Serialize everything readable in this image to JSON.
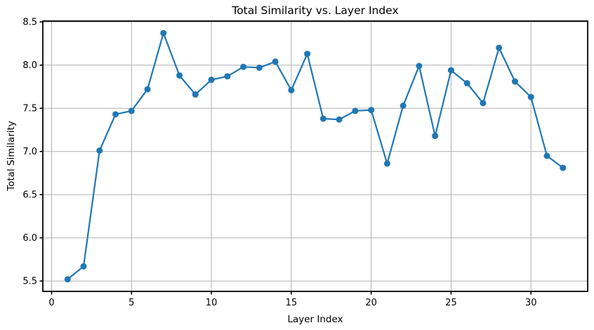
{
  "chart_data": {
    "type": "line",
    "title": "Total Similarity vs. Layer Index",
    "xlabel": "Layer Index",
    "ylabel": "Total Similarity",
    "x": [
      1,
      2,
      3,
      4,
      5,
      6,
      7,
      8,
      9,
      10,
      11,
      12,
      13,
      14,
      15,
      16,
      17,
      18,
      19,
      20,
      21,
      22,
      23,
      24,
      25,
      26,
      27,
      28,
      29,
      30,
      31,
      32
    ],
    "y": [
      5.52,
      5.67,
      7.01,
      7.43,
      7.47,
      7.72,
      8.37,
      7.88,
      7.66,
      7.83,
      7.87,
      7.98,
      7.97,
      8.04,
      7.71,
      8.13,
      7.38,
      7.37,
      7.47,
      7.48,
      6.86,
      7.53,
      7.99,
      7.18,
      7.94,
      7.79,
      7.56,
      8.2,
      7.81,
      7.63,
      6.95,
      6.81
    ],
    "xlim": [
      -0.55,
      33.55
    ],
    "ylim": [
      5.38,
      8.51
    ],
    "xticks": [
      0,
      5,
      10,
      15,
      20,
      25,
      30
    ],
    "yticks": [
      5.5,
      6.0,
      6.5,
      7.0,
      7.5,
      8.0,
      8.5
    ],
    "grid": true,
    "legend_position": "none",
    "line_color": "#1f77b4",
    "marker": "o",
    "marker_color": "#1f77b4",
    "grid_color": "#b0b0b0",
    "spine_color": "#000000",
    "background_color": "#ffffff"
  }
}
